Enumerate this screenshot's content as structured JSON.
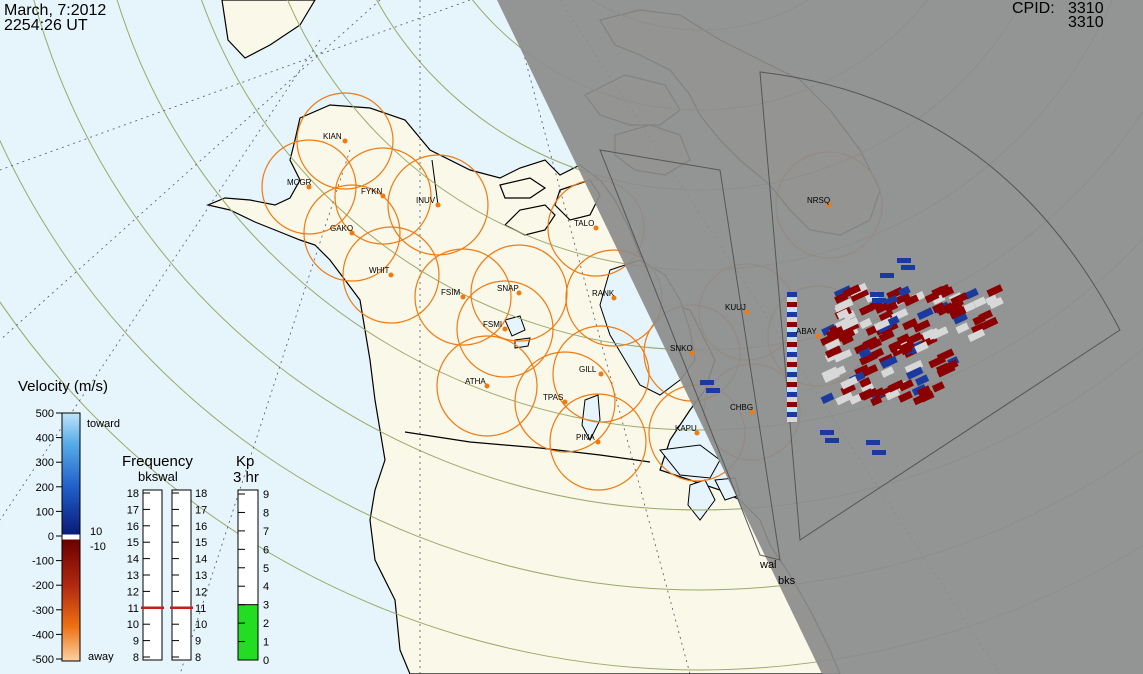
{
  "header": {
    "date": "March, 7:2012",
    "time": "2254:26 UT",
    "cpid_label": "CPID:",
    "cpid_values": [
      "3310",
      "3310"
    ]
  },
  "colors": {
    "ocean": "#e6f4fb",
    "land": "#faf8e8",
    "night": "#8c8c8c",
    "grid": "#9aaa6a",
    "radar_fov": "#f07a10",
    "toward": "#1a3aa0",
    "away": "#8b0000",
    "kp_fill": "#22dd22",
    "freq_marker": "#c0201c"
  },
  "stations": [
    {
      "code": "KIAN"
    },
    {
      "code": "MCGR"
    },
    {
      "code": "FYKN"
    },
    {
      "code": "INUV"
    },
    {
      "code": "GAKO"
    },
    {
      "code": "WHIT"
    },
    {
      "code": "FSIM"
    },
    {
      "code": "SNAP"
    },
    {
      "code": "FSMI"
    },
    {
      "code": "TALO"
    },
    {
      "code": "RANK"
    },
    {
      "code": "KUUJ"
    },
    {
      "code": "NRSQ"
    },
    {
      "code": "SNKO"
    },
    {
      "code": "ATHA"
    },
    {
      "code": "GILL"
    },
    {
      "code": "TPAS"
    },
    {
      "code": "CHBG"
    },
    {
      "code": "KAPU"
    },
    {
      "code": "PINA"
    },
    {
      "code": "ABAY"
    }
  ],
  "radars": {
    "names": [
      "wal",
      "bks"
    ]
  },
  "velocity_scale": {
    "title": "Velocity (m/s)",
    "ticks": [
      "500",
      "400",
      "300",
      "200",
      "100",
      "0",
      "-100",
      "-200",
      "-300",
      "-400",
      "-500"
    ],
    "toward_label": "toward",
    "away_label": "away",
    "threshold_labels": [
      "10",
      "-10"
    ]
  },
  "frequency": {
    "title": "Frequency",
    "subtitle": "bkswal",
    "ticks": [
      "18",
      "17",
      "16",
      "15",
      "14",
      "13",
      "12",
      "11",
      "10",
      "9",
      "8"
    ],
    "values_mhz": [
      11,
      11
    ]
  },
  "kp": {
    "title": "Kp",
    "subtitle": "3 hr",
    "ticks": [
      "9",
      "8",
      "7",
      "6",
      "5",
      "4",
      "3",
      "2",
      "1",
      "0"
    ],
    "value": 3
  }
}
